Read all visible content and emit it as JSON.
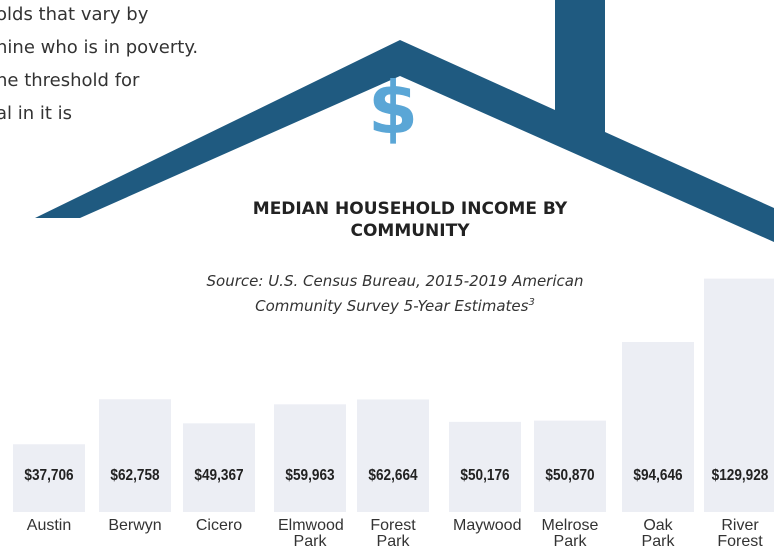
{
  "intro_lines": [
    "olds that vary by",
    "nine who is in poverty.",
    "ne threshold for",
    "al in it is"
  ],
  "icon": "$",
  "chart_data": {
    "type": "bar",
    "title": "MEDIAN HOUSEHOLD INCOME BY COMMUNITY",
    "subtitle": "Source: U.S. Census Bureau, 2015-2019 American Community Survey 5-Year Estimates",
    "subtitle_note": "3",
    "categories": [
      "Austin",
      "Berwyn",
      "Cicero",
      "Elmwood Park",
      "Forest Park",
      "Maywood",
      "Melrose Park",
      "Oak Park",
      "River Forest"
    ],
    "values": [
      37706,
      62758,
      49367,
      59963,
      62664,
      50176,
      50870,
      94646,
      129928
    ],
    "value_labels": [
      "$37,706",
      "$62,758",
      "$49,367",
      "$59,963",
      "$62,664",
      "$50,176",
      "$50,870",
      "$94,646",
      "$129,928"
    ],
    "color": "#eceef4"
  }
}
